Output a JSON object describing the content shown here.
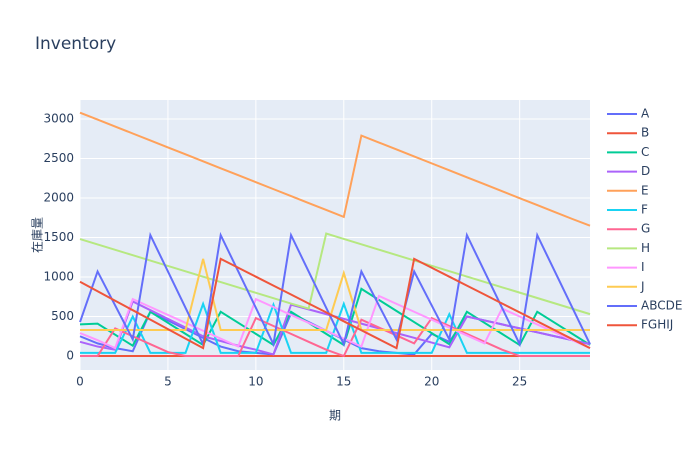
{
  "chart_data": {
    "type": "line",
    "title": "Inventory",
    "x_label": "期",
    "y_label": "在庫量",
    "x": [
      0,
      1,
      2,
      3,
      4,
      5,
      6,
      7,
      8,
      9,
      10,
      11,
      12,
      13,
      14,
      15,
      16,
      17,
      18,
      19,
      20,
      21,
      22,
      23,
      24,
      25,
      26,
      27,
      28,
      29
    ],
    "xlim": [
      0,
      29
    ],
    "xticks": [
      0,
      5,
      10,
      15,
      20,
      25
    ],
    "ylim": [
      -177,
      3240
    ],
    "yticks": [
      0,
      500,
      1000,
      1500,
      2000,
      2500,
      3000
    ],
    "grid": true,
    "series": [
      {
        "name": "A",
        "color": "#636efa",
        "values": [
          250,
          160,
          100,
          60,
          560,
          450,
          340,
          230,
          120,
          60,
          40,
          20,
          540,
          430,
          320,
          210,
          100,
          60,
          40,
          20,
          280,
          180,
          500,
          450,
          400,
          350,
          300,
          250,
          200,
          150
        ]
      },
      {
        "name": "B",
        "color": "#EF553B",
        "values": [
          0,
          0,
          0,
          0,
          0,
          0,
          0,
          0,
          0,
          0,
          0,
          0,
          0,
          0,
          0,
          0,
          0,
          0,
          0,
          0,
          0,
          0,
          0,
          0,
          0,
          0,
          0,
          0,
          0,
          0
        ]
      },
      {
        "name": "C",
        "color": "#00cc96",
        "values": [
          400,
          410,
          270,
          130,
          560,
          420,
          280,
          140,
          560,
          420,
          280,
          140,
          560,
          420,
          280,
          140,
          850,
          710,
          570,
          430,
          290,
          150,
          560,
          420,
          280,
          140,
          560,
          420,
          280,
          140
        ]
      },
      {
        "name": "D",
        "color": "#ab63fa",
        "values": [
          180,
          120,
          80,
          690,
          580,
          470,
          360,
          250,
          190,
          130,
          80,
          20,
          650,
          590,
          530,
          470,
          410,
          350,
          290,
          230,
          170,
          110,
          500,
          450,
          400,
          350,
          300,
          250,
          200,
          150
        ]
      },
      {
        "name": "E",
        "color": "#FFA15A",
        "values": [
          3080,
          2992,
          2904,
          2816,
          2728,
          2640,
          2552,
          2464,
          2376,
          2288,
          2200,
          2112,
          2024,
          1936,
          1848,
          1760,
          2790,
          2702,
          2614,
          2526,
          2438,
          2350,
          2262,
          2174,
          2086,
          1998,
          1910,
          1822,
          1734,
          1650
        ]
      },
      {
        "name": "F",
        "color": "#19d3f3",
        "values": [
          40,
          40,
          40,
          500,
          40,
          40,
          40,
          660,
          40,
          40,
          40,
          650,
          40,
          40,
          40,
          660,
          40,
          40,
          40,
          40,
          40,
          530,
          40,
          40,
          40,
          40,
          40,
          40,
          40,
          40
        ]
      },
      {
        "name": "G",
        "color": "#FF6692",
        "values": [
          0,
          0,
          350,
          250,
          150,
          50,
          0,
          0,
          0,
          0,
          480,
          380,
          280,
          180,
          80,
          0,
          460,
          360,
          260,
          160,
          480,
          380,
          280,
          180,
          80,
          0,
          0,
          0,
          0,
          0
        ]
      },
      {
        "name": "H",
        "color": "#B6E880",
        "values": [
          1480,
          1412,
          1344,
          1276,
          1208,
          1140,
          1072,
          1004,
          936,
          868,
          800,
          732,
          664,
          600,
          1550,
          1482,
          1414,
          1346,
          1278,
          1210,
          1142,
          1074,
          1006,
          938,
          870,
          802,
          734,
          666,
          598,
          530
        ]
      },
      {
        "name": "I",
        "color": "#FF97FF",
        "values": [
          290,
          200,
          100,
          720,
          620,
          520,
          420,
          320,
          220,
          120,
          720,
          620,
          520,
          420,
          320,
          220,
          120,
          760,
          660,
          560,
          460,
          360,
          260,
          160,
          600,
          500,
          400,
          300,
          200,
          100
        ]
      },
      {
        "name": "J",
        "color": "#FECB52",
        "values": [
          330,
          330,
          330,
          330,
          330,
          330,
          330,
          1230,
          330,
          330,
          330,
          330,
          330,
          330,
          330,
          1050,
          330,
          330,
          330,
          330,
          330,
          330,
          330,
          330,
          330,
          330,
          330,
          330,
          330,
          330
        ]
      },
      {
        "name": "ABCDE",
        "color": "#636efa",
        "values": [
          430,
          1070,
          640,
          210,
          1530,
          1070,
          610,
          150,
          1530,
          1070,
          610,
          150,
          1530,
          1070,
          610,
          150,
          1070,
          640,
          210,
          1070,
          640,
          210,
          1530,
          1070,
          610,
          150,
          1530,
          1070,
          610,
          150
        ]
      },
      {
        "name": "FGHIJ",
        "color": "#EF553B",
        "values": [
          940,
          820,
          700,
          580,
          460,
          340,
          220,
          100,
          1230,
          1117,
          1004,
          891,
          778,
          665,
          552,
          439,
          326,
          213,
          100,
          1230,
          1117,
          1004,
          891,
          778,
          665,
          552,
          439,
          326,
          213,
          100
        ]
      }
    ]
  }
}
